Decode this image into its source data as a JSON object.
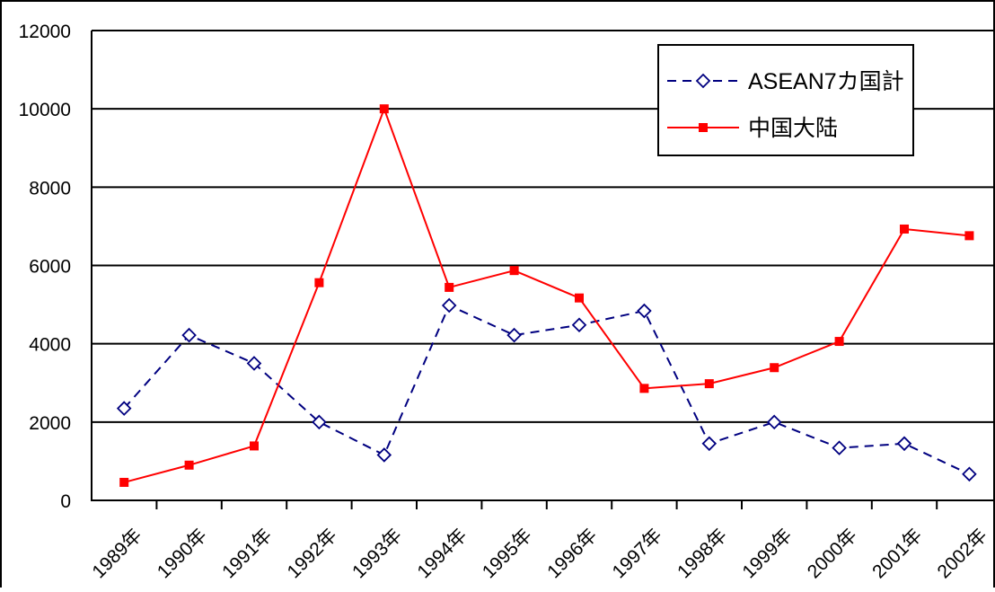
{
  "chart_data": {
    "type": "line",
    "categories": [
      "1989年",
      "1990年",
      "1991年",
      "1992年",
      "1993年",
      "1994年",
      "1995年",
      "1996年",
      "1997年",
      "1998年",
      "1999年",
      "2000年",
      "2001年",
      "2002年"
    ],
    "series": [
      {
        "name": "ASEAN7カ国計",
        "values": [
          2350,
          4220,
          3500,
          2000,
          1160,
          4980,
          4220,
          4480,
          4840,
          1450,
          2000,
          1340,
          1450,
          670
        ],
        "color": "#000080",
        "line_style": "dashed",
        "marker": "open-diamond"
      },
      {
        "name": "中国大陆",
        "values": [
          460,
          900,
          1390,
          5560,
          10000,
          5440,
          5870,
          5170,
          2860,
          2980,
          3390,
          4060,
          6930,
          6760
        ],
        "color": "#ff0000",
        "line_style": "solid",
        "marker": "filled-square"
      }
    ],
    "ylim": [
      0,
      12000
    ],
    "yticks": [
      "0",
      "2000",
      "4000",
      "6000",
      "8000",
      "10000",
      "12000"
    ],
    "grid": true,
    "legend_position": "top-right"
  }
}
